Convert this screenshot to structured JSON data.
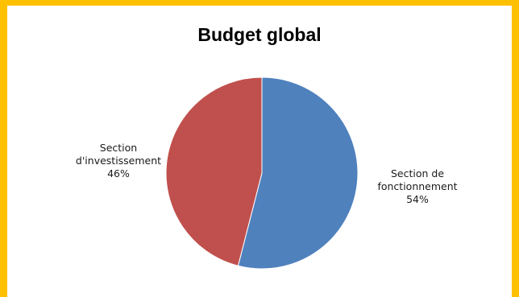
{
  "chart_data": {
    "type": "pie",
    "title": "Budget global",
    "categories": [
      "Section de fonctionnement",
      "Section d'investissement"
    ],
    "values": [
      54,
      46
    ],
    "unit": "%",
    "colors": [
      "#4F81BD",
      "#C0504D"
    ],
    "slices": [
      {
        "name": "Section de fonctionnement",
        "value": 54,
        "color": "#4F81BD",
        "label_lines": [
          "Section de",
          "fonctionnement",
          "54%"
        ]
      },
      {
        "name": "Section d'investissement",
        "value": 46,
        "color": "#C0504D",
        "label_lines": [
          "Section",
          "d'investissement",
          "46%"
        ]
      }
    ],
    "legend": "none",
    "frame_color": "#FFC000"
  }
}
